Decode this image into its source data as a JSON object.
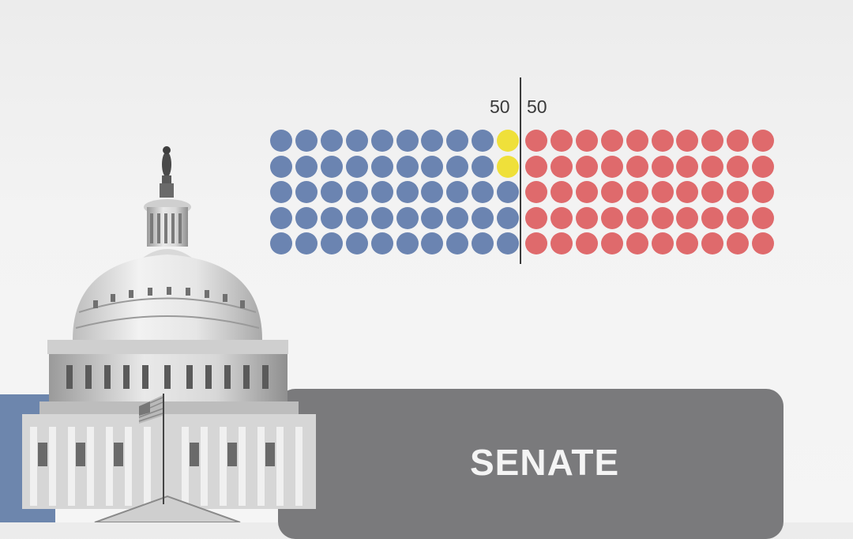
{
  "seat_split": {
    "left_count": "50",
    "right_count": "50"
  },
  "seat_grid": {
    "rows": 5,
    "columns": 20,
    "colors": {
      "blue": "#6b84b1",
      "yellow": "#efe03a",
      "red": "#df6a6c"
    },
    "row_colors": [
      [
        "blue",
        "blue",
        "blue",
        "blue",
        "blue",
        "blue",
        "blue",
        "blue",
        "blue",
        "yellow",
        "red",
        "red",
        "red",
        "red",
        "red",
        "red",
        "red",
        "red",
        "red",
        "red"
      ],
      [
        "blue",
        "blue",
        "blue",
        "blue",
        "blue",
        "blue",
        "blue",
        "blue",
        "blue",
        "yellow",
        "red",
        "red",
        "red",
        "red",
        "red",
        "red",
        "red",
        "red",
        "red",
        "red"
      ],
      [
        "blue",
        "blue",
        "blue",
        "blue",
        "blue",
        "blue",
        "blue",
        "blue",
        "blue",
        "blue",
        "red",
        "red",
        "red",
        "red",
        "red",
        "red",
        "red",
        "red",
        "red",
        "red"
      ],
      [
        "blue",
        "blue",
        "blue",
        "blue",
        "blue",
        "blue",
        "blue",
        "blue",
        "blue",
        "blue",
        "red",
        "red",
        "red",
        "red",
        "red",
        "red",
        "red",
        "red",
        "red",
        "red"
      ],
      [
        "blue",
        "blue",
        "blue",
        "blue",
        "blue",
        "blue",
        "blue",
        "blue",
        "blue",
        "blue",
        "red",
        "red",
        "red",
        "red",
        "red",
        "red",
        "red",
        "red",
        "red",
        "red"
      ]
    ]
  },
  "banner": {
    "label": "SENATE"
  },
  "colors": {
    "left_band": "#6d86ad",
    "panel": "#7a7a7c"
  }
}
